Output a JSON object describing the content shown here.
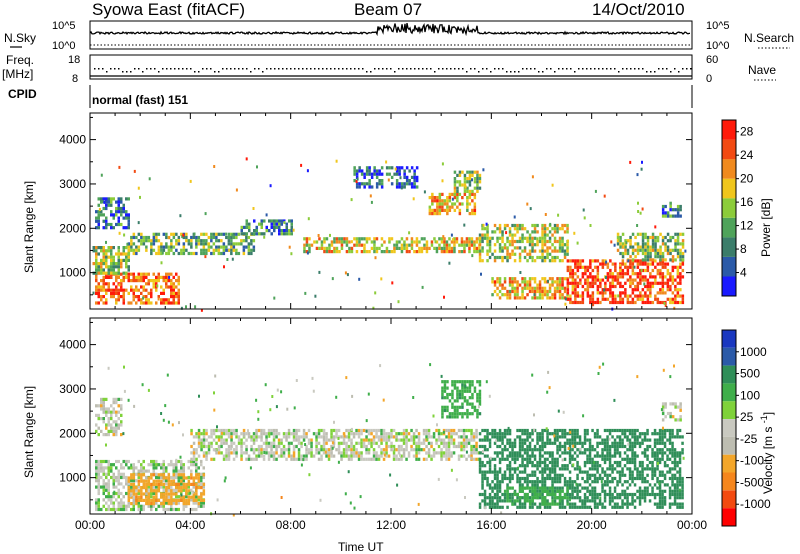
{
  "header": {
    "station": "Syowa East (fitACF)",
    "beam": "Beam 07",
    "date": "14/Oct/2010"
  },
  "left_labels": {
    "nsky": "N.Sky",
    "freq": "Freq.",
    "freq_unit": "[MHz]",
    "cpid": "CPID"
  },
  "right_labels": {
    "nsearch": "N.Search",
    "nave": "Nave"
  },
  "mode_text": "normal (fast) 151",
  "colors": {
    "power_scale": [
      "#1a1aff",
      "#2b5aa8",
      "#3b7d6a",
      "#4fa35a",
      "#8ccc3a",
      "#f0c61c",
      "#f08a1e",
      "#f24a12",
      "#ff1a0a"
    ],
    "velocity_scale": [
      "#ff0000",
      "#f34a10",
      "#f5861c",
      "#f3a62a",
      "#bdbdb1",
      "#c9c9c0",
      "#7fd23a",
      "#3fae4a",
      "#2f8e58",
      "#2b5aa8",
      "#1a38c0"
    ]
  },
  "chart_data": [
    {
      "type": "line",
      "name": "status-nsky",
      "yticks": [
        "10^5",
        "10^0"
      ],
      "right_yticks": [
        "10^5",
        "10^0"
      ],
      "ylabel": "N.Sky",
      "right_label": "N.Search"
    },
    {
      "type": "scatter",
      "name": "status-freq-nave",
      "yticks": [
        18,
        8
      ],
      "right_yticks": [
        60,
        0
      ],
      "ylabel": "Freq. [MHz]",
      "right_label": "Nave"
    },
    {
      "type": "heatmap",
      "name": "power",
      "xlabel": "",
      "ylabel": "Slant Range [km]",
      "x_ticks": [
        "00:00",
        "04:00",
        "08:00",
        "12:00",
        "16:00",
        "20:00",
        "00:00"
      ],
      "x_range_hours": [
        0,
        24
      ],
      "ylim": [
        180,
        4600
      ],
      "yticks": [
        1000,
        2000,
        3000,
        4000
      ],
      "colorbar": {
        "label": "Power [dB]",
        "ticks": [
          4,
          8,
          12,
          16,
          20,
          24,
          28
        ],
        "range": [
          0,
          30
        ]
      },
      "echo_regions": [
        {
          "t0": 0.2,
          "t1": 3.5,
          "r0": 300,
          "r1": 1000,
          "value": 24
        },
        {
          "t0": 0.1,
          "t1": 1.5,
          "r0": 1000,
          "r1": 1600,
          "value": 14
        },
        {
          "t0": 0.2,
          "t1": 1.5,
          "r0": 2000,
          "r1": 2700,
          "value": 8
        },
        {
          "t0": 1.5,
          "t1": 6.5,
          "r0": 1400,
          "r1": 1900,
          "value": 12
        },
        {
          "t0": 6.0,
          "t1": 8.0,
          "r0": 1900,
          "r1": 2200,
          "value": 8
        },
        {
          "t0": 8.5,
          "t1": 15.5,
          "r0": 1500,
          "r1": 1800,
          "value": 18
        },
        {
          "t0": 10.5,
          "t1": 13.0,
          "r0": 2900,
          "r1": 3400,
          "value": 6
        },
        {
          "t0": 13.5,
          "t1": 15.3,
          "r0": 2300,
          "r1": 2800,
          "value": 20
        },
        {
          "t0": 14.5,
          "t1": 15.5,
          "r0": 2800,
          "r1": 3300,
          "value": 14
        },
        {
          "t0": 15.5,
          "t1": 19.0,
          "r0": 1300,
          "r1": 2100,
          "value": 16
        },
        {
          "t0": 16.0,
          "t1": 19.0,
          "r0": 400,
          "r1": 900,
          "value": 20
        },
        {
          "t0": 19.0,
          "t1": 23.6,
          "r0": 300,
          "r1": 1300,
          "value": 26
        },
        {
          "t0": 21.0,
          "t1": 23.6,
          "r0": 1300,
          "r1": 1900,
          "value": 14
        },
        {
          "t0": 22.8,
          "t1": 23.5,
          "r0": 2300,
          "r1": 2600,
          "value": 8
        }
      ]
    },
    {
      "type": "heatmap",
      "name": "velocity",
      "xlabel": "Time UT",
      "ylabel": "Slant Range [km]",
      "x_ticks": [
        "00:00",
        "04:00",
        "08:00",
        "12:00",
        "16:00",
        "20:00",
        "00:00"
      ],
      "x_range_hours": [
        0,
        24
      ],
      "ylim": [
        180,
        4600
      ],
      "yticks": [
        1000,
        2000,
        3000,
        4000
      ],
      "colorbar": {
        "label": "Velocity [m s^-1]",
        "ticks": [
          "1000",
          "500",
          "100",
          "25",
          "-25",
          "-100",
          "-500",
          "-1000"
        ]
      },
      "echo_regions": [
        {
          "t0": 0.2,
          "t1": 4.5,
          "r0": 300,
          "r1": 1400,
          "value": 20
        },
        {
          "t0": 1.5,
          "t1": 4.5,
          "r0": 400,
          "r1": 1100,
          "value": -150
        },
        {
          "t0": 0.2,
          "t1": 1.2,
          "r0": 2000,
          "r1": 2800,
          "value": 0
        },
        {
          "t0": 4.0,
          "t1": 15.5,
          "r0": 1400,
          "r1": 2100,
          "value": 0
        },
        {
          "t0": 14.0,
          "t1": 15.5,
          "r0": 2400,
          "r1": 3200,
          "value": 150
        },
        {
          "t0": 15.5,
          "t1": 23.6,
          "r0": 300,
          "r1": 2100,
          "value": 300
        },
        {
          "t0": 16.5,
          "t1": 19.0,
          "r0": 400,
          "r1": 800,
          "value": 120
        },
        {
          "t0": 22.8,
          "t1": 23.5,
          "r0": 2300,
          "r1": 2700,
          "value": 0
        }
      ]
    }
  ]
}
